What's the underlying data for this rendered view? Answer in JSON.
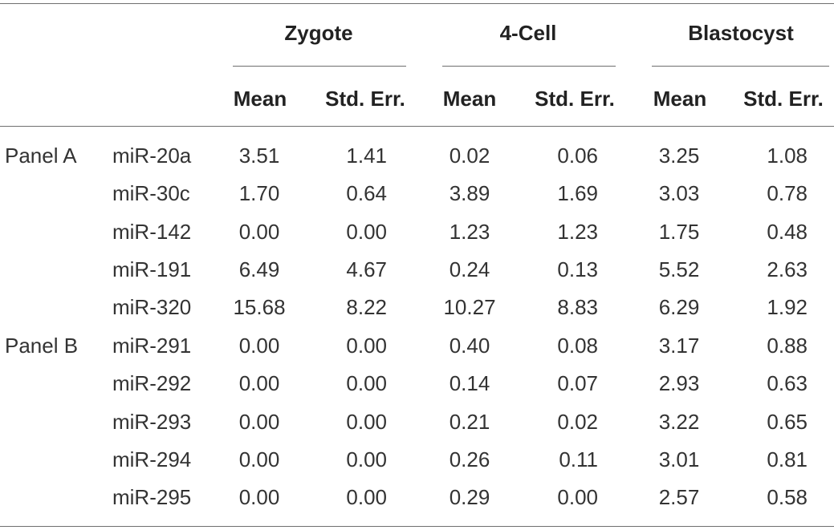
{
  "table": {
    "group_headers": [
      "Zygote",
      "4-Cell",
      "Blastocyst"
    ],
    "sub_headers": [
      "Mean",
      "Std. Err.",
      "Mean",
      "Std. Err.",
      "Mean",
      "Std. Err."
    ],
    "rows": [
      {
        "panel": "Panel A",
        "mirna": "miR-20a",
        "values": [
          "3.51",
          "1.41",
          "0.02",
          "0.06",
          "3.25",
          "1.08"
        ]
      },
      {
        "panel": "",
        "mirna": "miR-30c",
        "values": [
          "1.70",
          "0.64",
          "3.89",
          "1.69",
          "3.03",
          "0.78"
        ]
      },
      {
        "panel": "",
        "mirna": "miR-142",
        "values": [
          "0.00",
          "0.00",
          "1.23",
          "1.23",
          "1.75",
          "0.48"
        ]
      },
      {
        "panel": "",
        "mirna": "miR-191",
        "values": [
          "6.49",
          "4.67",
          "0.24",
          "0.13",
          "5.52",
          "2.63"
        ]
      },
      {
        "panel": "",
        "mirna": "miR-320",
        "values": [
          "15.68",
          "8.22",
          "10.27",
          "8.83",
          "6.29",
          "1.92"
        ]
      },
      {
        "panel": "Panel B",
        "mirna": "miR-291",
        "values": [
          "0.00",
          "0.00",
          "0.40",
          "0.08",
          "3.17",
          "0.88"
        ]
      },
      {
        "panel": "",
        "mirna": "miR-292",
        "values": [
          "0.00",
          "0.00",
          "0.14",
          "0.07",
          "2.93",
          "0.63"
        ]
      },
      {
        "panel": "",
        "mirna": "miR-293",
        "values": [
          "0.00",
          "0.00",
          "0.21",
          "0.02",
          "3.22",
          "0.65"
        ]
      },
      {
        "panel": "",
        "mirna": "miR-294",
        "values": [
          "0.00",
          "0.00",
          "0.26",
          "0.11",
          "3.01",
          "0.81"
        ]
      },
      {
        "panel": "",
        "mirna": "miR-295",
        "values": [
          "0.00",
          "0.00",
          "0.29",
          "0.00",
          "2.57",
          "0.58"
        ]
      }
    ]
  }
}
